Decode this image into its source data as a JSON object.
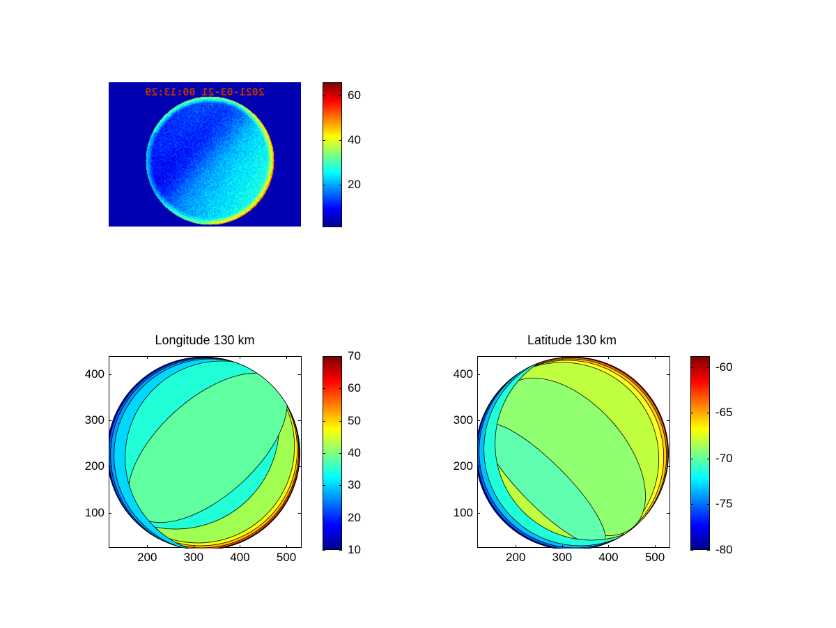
{
  "chart_data": [
    {
      "type": "heatmap",
      "title": "",
      "image_label": "2021-03-21 00:13:29",
      "colorbar": {
        "min": 1,
        "max": 66,
        "ticks": [
          20,
          40,
          60
        ]
      }
    },
    {
      "type": "heatmap",
      "title": "Longitude 130 km",
      "xlim": [
        117,
        533
      ],
      "ylim": [
        24,
        439
      ],
      "xticks": [
        200,
        300,
        400,
        500
      ],
      "yticks": [
        100,
        200,
        300,
        400
      ],
      "circle": {
        "cx": 320,
        "cy": 230,
        "r": 208
      },
      "colorbar": {
        "min": 10,
        "max": 70,
        "ticks": [
          10,
          20,
          30,
          40,
          50,
          60,
          70
        ]
      }
    },
    {
      "type": "heatmap",
      "title": "Latitude 130 km",
      "xlim": [
        117,
        533
      ],
      "ylim": [
        24,
        439
      ],
      "xticks": [
        200,
        300,
        400,
        500
      ],
      "yticks": [
        100,
        200,
        300,
        400
      ],
      "circle": {
        "cx": 320,
        "cy": 230,
        "r": 208
      },
      "colorbar": {
        "min": -80,
        "max": -58.8,
        "ticks": [
          -80,
          -75,
          -70,
          -65,
          -60
        ]
      }
    }
  ]
}
